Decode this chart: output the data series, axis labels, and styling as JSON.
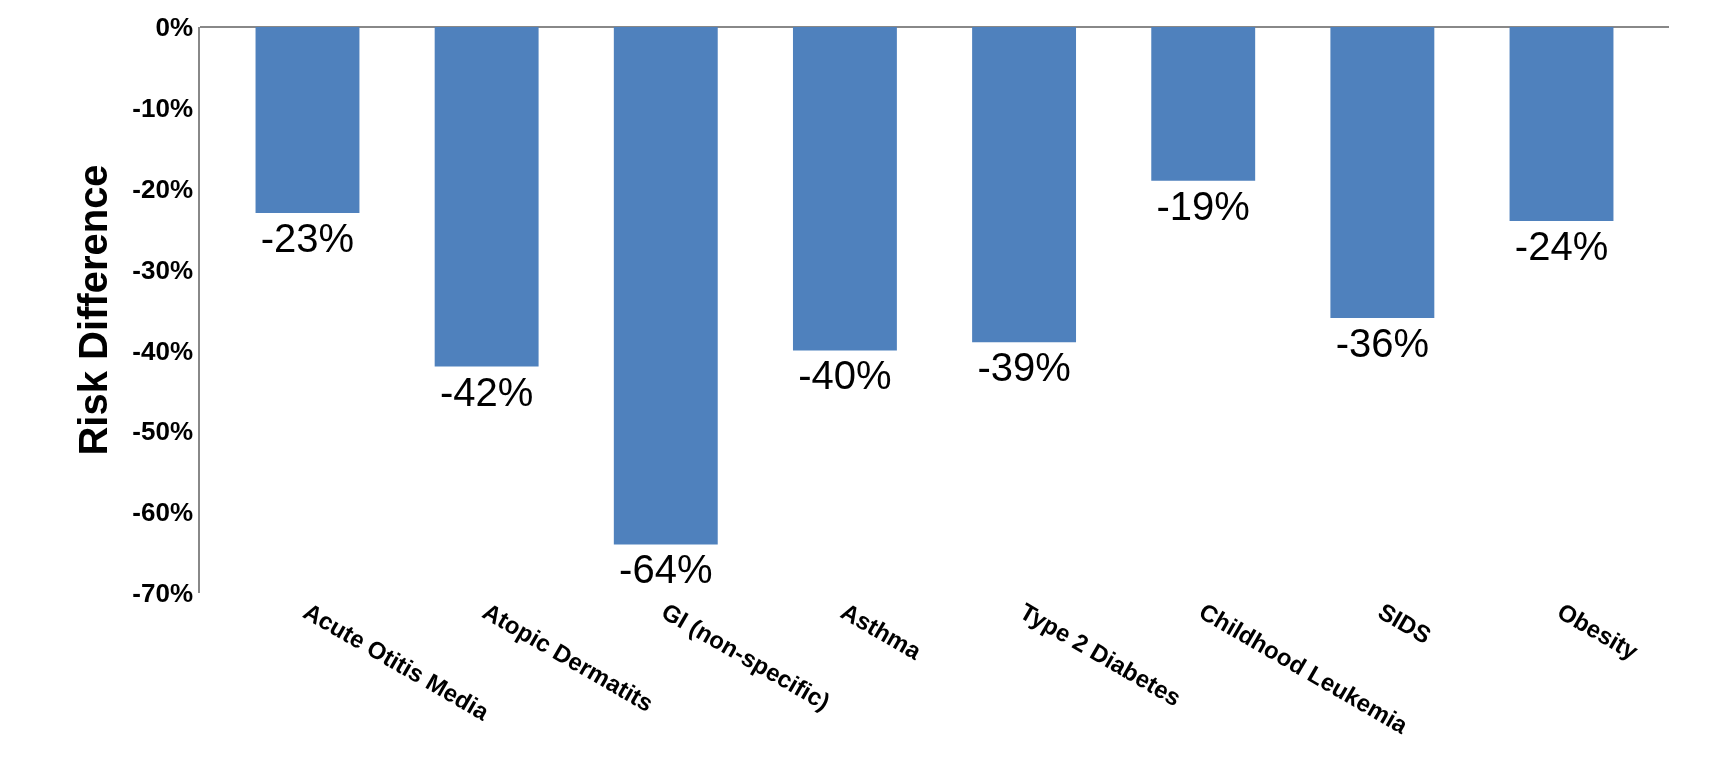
{
  "chart_data": {
    "type": "bar",
    "ylabel": "Risk Difference",
    "categories": [
      "Acute Otitis Media",
      "Atopic Dermatits",
      "GI (non-specific)",
      "Asthma",
      "Type 2 Diabetes",
      "Childhood Leukemia",
      "SIDS",
      "Obesity"
    ],
    "values": [
      -23,
      -42,
      -64,
      -40,
      -39,
      -19,
      -36,
      -24
    ],
    "value_labels": [
      "-23%",
      "-42%",
      "-64%",
      "-40%",
      "-39%",
      "-19%",
      "-36%",
      "-24%"
    ],
    "color": "#4f81bd",
    "ylim": [
      -70,
      0
    ],
    "yticks": [
      {
        "value": 0,
        "label": "0%"
      },
      {
        "value": -10,
        "label": "-10%"
      },
      {
        "value": -20,
        "label": "-20%"
      },
      {
        "value": -30,
        "label": "-30%"
      },
      {
        "value": -40,
        "label": "-40%"
      },
      {
        "value": -50,
        "label": "-50%"
      },
      {
        "value": -60,
        "label": "-60%"
      },
      {
        "value": -70,
        "label": "-70%"
      }
    ],
    "grid": false,
    "legend": false
  }
}
